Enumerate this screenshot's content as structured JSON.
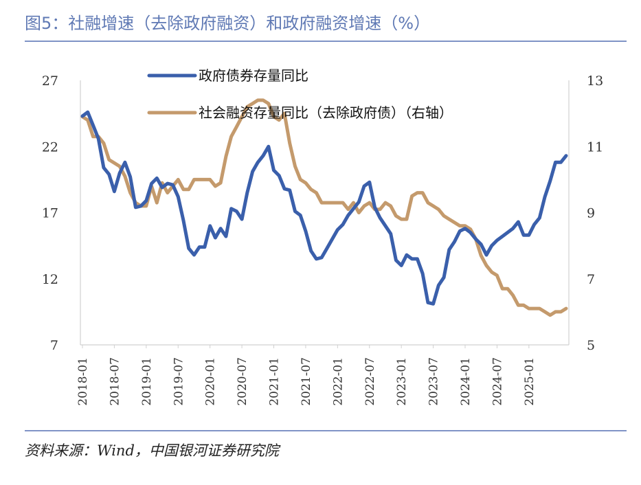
{
  "header": {
    "title": "图5：社融增速（去除政府融资）和政府融资增速（%）"
  },
  "footer": {
    "source": "资料来源：Wind，中国银河证券研究院"
  },
  "chart_data": {
    "type": "line",
    "title": "图5：社融增速（去除政府融资）和政府融资增速（%）",
    "xlabel": "",
    "ylabel": "",
    "y_left": {
      "ticks": [
        "27",
        "22",
        "17",
        "12",
        "7"
      ],
      "ylim": [
        7,
        27
      ]
    },
    "y_right": {
      "ticks": [
        "13",
        "11",
        "9",
        "7",
        "5"
      ],
      "ylim": [
        5,
        13
      ]
    },
    "x_ticks": [
      "2018-01",
      "2018-07",
      "2019-01",
      "2019-07",
      "2020-01",
      "2020-07",
      "2021-01",
      "2021-07",
      "2022-01",
      "2022-07",
      "2023-01",
      "2023-07",
      "2024-01",
      "2024-07",
      "2025-01"
    ],
    "x_range": [
      "2018-01",
      "2025-06"
    ],
    "legend_position": "top",
    "grid": false,
    "colors": {
      "gov": "#3a5fab",
      "social": "#c49a6c"
    },
    "series": [
      {
        "name": "政府债券存量同比",
        "axis": "left",
        "values": [
          24.3,
          24.6,
          23.6,
          22.6,
          20.4,
          19.9,
          18.6,
          20.0,
          20.8,
          19.7,
          17.4,
          17.5,
          17.9,
          19.2,
          19.6,
          18.9,
          19.2,
          19.1,
          18.2,
          16.4,
          14.3,
          13.8,
          14.4,
          14.4,
          16.0,
          15.1,
          15.8,
          15.2,
          17.3,
          17.1,
          16.5,
          18.5,
          20.1,
          20.8,
          21.3,
          22.0,
          20.2,
          19.8,
          18.8,
          18.7,
          17.1,
          16.8,
          15.6,
          14.1,
          13.5,
          13.6,
          14.3,
          15.0,
          15.7,
          16.1,
          16.8,
          17.3,
          17.8,
          19.0,
          19.3,
          17.4,
          16.6,
          16.0,
          15.4,
          13.4,
          13.0,
          13.8,
          13.5,
          13.5,
          12.4,
          10.2,
          10.1,
          11.5,
          12.1,
          14.2,
          14.8,
          15.6,
          15.8,
          15.5,
          15.0,
          14.6,
          13.8,
          14.5,
          14.9,
          15.2,
          15.5,
          15.8,
          16.3,
          15.3,
          15.3,
          16.1,
          16.6,
          18.2,
          19.4,
          20.8,
          20.8,
          21.3
        ]
      },
      {
        "name": "社会融资存量同比（去除政府债）（右轴）",
        "axis": "right",
        "values": [
          11.9,
          11.8,
          11.3,
          11.3,
          11.1,
          10.6,
          10.5,
          10.4,
          10.1,
          9.6,
          9.3,
          9.2,
          9.2,
          9.8,
          9.3,
          9.9,
          9.6,
          9.8,
          10.0,
          9.7,
          9.7,
          10.0,
          10.0,
          10.0,
          10.0,
          9.8,
          9.9,
          10.7,
          11.3,
          11.6,
          11.9,
          12.2,
          12.3,
          12.4,
          12.4,
          12.3,
          11.9,
          11.8,
          12.0,
          11.1,
          10.4,
          10.0,
          9.9,
          9.7,
          9.6,
          9.3,
          9.3,
          9.3,
          9.3,
          9.3,
          9.1,
          9.3,
          9.0,
          9.2,
          9.3,
          9.1,
          9.1,
          9.3,
          9.2,
          8.9,
          8.8,
          8.8,
          9.5,
          9.6,
          9.6,
          9.3,
          9.2,
          9.1,
          8.9,
          8.8,
          8.7,
          8.6,
          8.6,
          8.5,
          8.2,
          7.7,
          7.4,
          7.2,
          7.1,
          6.7,
          6.7,
          6.5,
          6.2,
          6.2,
          6.1,
          6.1,
          6.1,
          6.0,
          5.9,
          6.0,
          6.0,
          6.1
        ]
      }
    ]
  }
}
